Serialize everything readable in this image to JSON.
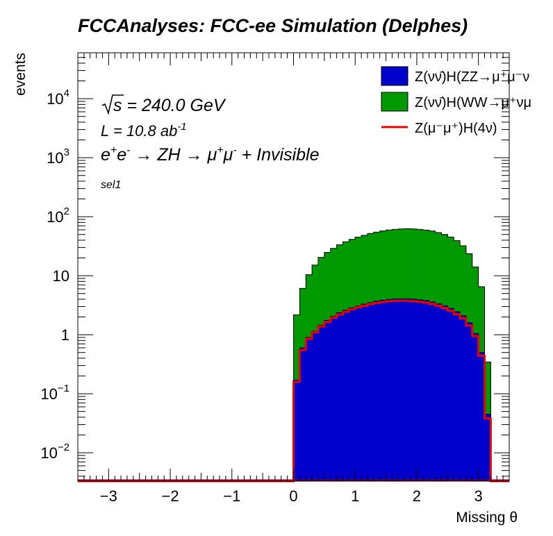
{
  "chart_data": {
    "type": "histogram",
    "title": "FCCAnalyses: FCC-ee Simulation (Delphes)",
    "xlabel": "Missing θ",
    "ylabel": "events",
    "xlim": [
      -3.5,
      3.5
    ],
    "ylim": [
      0.0033,
      60000
    ],
    "y_scale": "log",
    "x_ticks": [
      {
        "value": -3,
        "label": "−3"
      },
      {
        "value": -2,
        "label": "−2"
      },
      {
        "value": -1,
        "label": "−1"
      },
      {
        "value": 0,
        "label": "0"
      },
      {
        "value": 1,
        "label": "1"
      },
      {
        "value": 2,
        "label": "2"
      },
      {
        "value": 3,
        "label": "3"
      }
    ],
    "y_ticks": [
      {
        "value": 0.01,
        "base": "10",
        "exp": "−2"
      },
      {
        "value": 0.1,
        "base": "10",
        "exp": "−1"
      },
      {
        "value": 1,
        "base": "1",
        "exp": ""
      },
      {
        "value": 10,
        "base": "10",
        "exp": ""
      },
      {
        "value": 100,
        "base": "10",
        "exp": "2"
      },
      {
        "value": 1000,
        "base": "10",
        "exp": "3"
      },
      {
        "value": 10000,
        "base": "10",
        "exp": "4"
      }
    ],
    "annotations": {
      "sqrt_s": "s = 240.0 GeV",
      "lumi_base": "L = 10.8 ab",
      "lumi_exp": "-1",
      "process": {
        "e": "e",
        "plus": "+",
        "e2": "e",
        "minus": "-",
        "arrow1": " → ZH → μ",
        "mu_plus": "+",
        "mu": "μ",
        "mu_minus": "-",
        "tail": " + Invisible"
      },
      "selection": "sel1"
    },
    "bins": {
      "first_edge": 0.0,
      "width": 0.1,
      "count": 32,
      "note": "bins below 0 and above 3.2 are empty"
    },
    "series": [
      {
        "name": "Z(νν̄)H(ZZ→μ⁺μ⁻νν̄)",
        "legend_label": "Z(νν̄)H(ZZ→μ⁺μ⁻ν",
        "kind": "stacked-fill",
        "color": "#0000cc",
        "values": [
          0.17,
          0.6,
          0.9,
          1.15,
          1.45,
          1.75,
          2.05,
          2.35,
          2.6,
          2.85,
          3.05,
          3.3,
          3.5,
          3.7,
          3.85,
          3.95,
          4.05,
          4.05,
          4.05,
          4.0,
          3.9,
          3.8,
          3.6,
          3.35,
          3.1,
          2.8,
          2.45,
          2.1,
          1.6,
          1.05,
          0.5,
          0.045
        ]
      },
      {
        "name": "Z(νν̄)H(WW→μ⁺νμ⁻ν̄)",
        "legend_label": "Z(νν̄)H(WW→μ⁺νμ",
        "kind": "stacked-fill",
        "color": "#009900",
        "values": [
          2.0,
          5.5,
          9.5,
          14,
          19,
          23,
          27,
          31,
          35,
          38.5,
          42,
          45,
          48.5,
          51,
          53.5,
          55.5,
          57,
          58,
          58.5,
          58,
          57,
          55.5,
          53.5,
          50.5,
          47,
          42.5,
          37,
          30,
          22,
          13,
          6,
          0.3
        ]
      },
      {
        "name": "Z(μ⁻μ⁺)H(4ν)",
        "legend_label": "Z(μ⁻μ⁺)H(4ν)",
        "kind": "line",
        "color": "#ee0000",
        "values": [
          0.16,
          0.55,
          0.85,
          1.1,
          1.38,
          1.65,
          1.95,
          2.2,
          2.45,
          2.7,
          2.9,
          3.1,
          3.3,
          3.45,
          3.6,
          3.7,
          3.75,
          3.78,
          3.78,
          3.72,
          3.62,
          3.5,
          3.32,
          3.1,
          2.85,
          2.55,
          2.22,
          1.9,
          1.43,
          0.95,
          0.44,
          0.038
        ]
      }
    ]
  }
}
